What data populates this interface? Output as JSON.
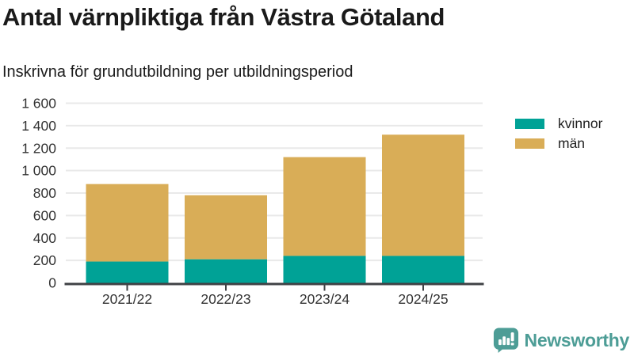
{
  "header": {
    "title": "Antal värnpliktiga från Västra Götaland",
    "subtitle": "Inskrivna för grundutbildning per utbildningsperiod"
  },
  "chart_data": {
    "type": "bar",
    "stacked": true,
    "title": "Antal värnpliktiga från Västra Götaland",
    "subtitle": "Inskrivna för grundutbildning per utbildningsperiod",
    "categories": [
      "2021/22",
      "2022/23",
      "2023/24",
      "2024/25"
    ],
    "series": [
      {
        "name": "kvinnor",
        "color": "#00a296",
        "values": [
          190,
          210,
          240,
          240
        ]
      },
      {
        "name": "män",
        "color": "#d9ad57",
        "values": [
          690,
          570,
          880,
          1080
        ]
      }
    ],
    "stacked_totals": [
      880,
      780,
      1120,
      1320
    ],
    "xlabel": "",
    "ylabel": "",
    "ylim": [
      0,
      1600
    ],
    "yticks": [
      0,
      200,
      400,
      600,
      800,
      1000,
      1200,
      1400,
      1600
    ],
    "ytick_labels": [
      "0",
      "200",
      "400",
      "600",
      "800",
      "1 000",
      "1 200",
      "1 400",
      "1 600"
    ],
    "grid": true,
    "legend_position": "top-right"
  },
  "branding": {
    "logo_text": "Newsworthy",
    "logo_color": "#4d9d96"
  }
}
